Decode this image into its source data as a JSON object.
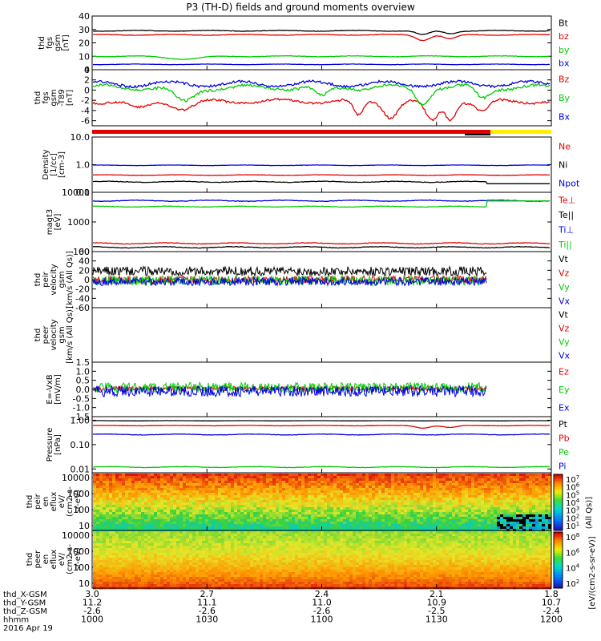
{
  "title": "P3 (TH-D) fields and ground moments overview",
  "colors": {
    "black": "#000000",
    "red": "#e00000",
    "green": "#00cc00",
    "blue": "#0000e0",
    "yellow": "#ffee00"
  },
  "xaxis": {
    "row_labels": [
      "thd_X-GSM",
      "thd_Y-GSM",
      "thd_Z-GSM",
      "hhmm"
    ],
    "date_label": "2016 Apr 19",
    "ticks": [
      {
        "time": "1000",
        "x": "3.0",
        "y": "11.2",
        "z": "-2.6"
      },
      {
        "time": "1030",
        "x": "2.7",
        "y": "11.1",
        "z": "-2.6"
      },
      {
        "time": "1100",
        "x": "2.4",
        "y": "11.0",
        "z": "-2.6"
      },
      {
        "time": "1130",
        "x": "2.1",
        "y": "10.9",
        "z": "-2.5"
      },
      {
        "time": "1200",
        "x": "1.8",
        "y": "10.7",
        "z": "-2.4"
      }
    ]
  },
  "colorbar": {
    "label": "[eV/(cm2-s-sr-eV)]",
    "label_upper": "(All Qs)]",
    "ticks_upper": [
      "10^7",
      "10^6",
      "10^5",
      "10^4",
      "10^3",
      "10^2",
      "10^1"
    ],
    "ticks_lower": [
      "10^8",
      "10^6",
      "10^4",
      "10^2"
    ]
  },
  "chart_data": [
    {
      "type": "line",
      "panel": "fgs_gsm",
      "ylabel": [
        "thd",
        "fgs",
        "gsm",
        "[nT]"
      ],
      "ylim": [
        0,
        40
      ],
      "yticks": [
        "0",
        "10",
        "20",
        "30",
        "40"
      ],
      "series": [
        {
          "name": "Bt",
          "color": "black",
          "base": 29,
          "noise": 0.3,
          "dips": [
            [
              0.72,
              3,
              0.02
            ],
            [
              0.78,
              2,
              0.02
            ]
          ]
        },
        {
          "name": "bz",
          "color": "red",
          "base": 26,
          "noise": 0.3,
          "dips": [
            [
              0.72,
              4,
              0.02
            ],
            [
              0.78,
              3,
              0.02
            ]
          ]
        },
        {
          "name": "by",
          "color": "green",
          "base": 10,
          "noise": 0.3,
          "dips": [
            [
              0.2,
              2,
              0.05
            ]
          ]
        },
        {
          "name": "bx",
          "color": "blue",
          "base": 4,
          "noise": 0.2,
          "dips": []
        }
      ]
    },
    {
      "type": "line",
      "panel": "fgs_gsm_detrended",
      "ylabel": [
        "thd",
        "fgs",
        "gsm",
        "-T89",
        "[nT]"
      ],
      "ylim": [
        -7,
        4
      ],
      "yticks": [
        "-6",
        "-4",
        "-2",
        "0",
        "2",
        "4"
      ],
      "series": [
        {
          "name": "Bz",
          "color": "red",
          "base": -2.2,
          "noise": 0.4,
          "dips": [
            [
              0.1,
              1.5,
              0.03
            ],
            [
              0.2,
              1.5,
              0.03
            ],
            [
              0.58,
              3,
              0.015
            ],
            [
              0.65,
              3,
              0.02
            ],
            [
              0.74,
              4,
              0.02
            ],
            [
              0.78,
              3.5,
              0.015
            ],
            [
              0.85,
              2,
              0.02
            ]
          ]
        },
        {
          "name": "By",
          "color": "green",
          "base": 0.5,
          "noise": 0.5,
          "dips": [
            [
              0.2,
              3,
              0.03
            ],
            [
              0.5,
              2,
              0.02
            ],
            [
              0.72,
              3,
              0.02
            ],
            [
              0.85,
              2,
              0.02
            ]
          ]
        },
        {
          "name": "Bx",
          "color": "blue",
          "base": 1.2,
          "noise": 0.5,
          "dips": []
        }
      ]
    },
    {
      "type": "line",
      "panel": "density",
      "ylabel": [
        "Density",
        "[1/cc]",
        "[cm-3]"
      ],
      "ylim": [
        0.1,
        10
      ],
      "log": true,
      "yticks": [
        "0.1",
        "1.0",
        "10.0"
      ],
      "series": [
        {
          "name": "Ne",
          "color": "red",
          "base": 0.42,
          "noise": 0.01,
          "dips": []
        },
        {
          "name": "Ni",
          "color": "black",
          "base": 0.24,
          "noise": 0.01,
          "dips": []
        },
        {
          "name": "Npot",
          "color": "blue",
          "base": 0.95,
          "noise": 0.02,
          "dips": []
        }
      ]
    },
    {
      "type": "line",
      "panel": "temperature",
      "ylabel": [
        "magt3",
        "[eV]"
      ],
      "ylim": [
        100,
        10000
      ],
      "log": true,
      "yticks": [
        "100",
        "1000",
        "10000"
      ],
      "series": [
        {
          "name": "Te⊥",
          "color": "red",
          "base": 190,
          "noise": 8,
          "dips": []
        },
        {
          "name": "Te||",
          "color": "black",
          "base": 140,
          "noise": 6,
          "dips": []
        },
        {
          "name": "Ti⊥",
          "color": "blue",
          "base": 5200,
          "noise": 200,
          "dips": []
        },
        {
          "name": "Ti||",
          "color": "green",
          "base": 3300,
          "noise": 100,
          "dips": []
        }
      ]
    },
    {
      "type": "line",
      "panel": "ion_velocity",
      "ylabel": [
        "thd",
        "peir",
        "velocity",
        "gsm",
        "[km/s (All Qs)]"
      ],
      "ylim": [
        -60,
        60
      ],
      "yticks": [
        "-60",
        "-40",
        "-20",
        "0",
        "20",
        "40",
        "60"
      ],
      "series": [
        {
          "name": "Vt",
          "color": "black",
          "base": 18,
          "noise": 10
        },
        {
          "name": "Vz",
          "color": "red",
          "base": 0,
          "noise": 8
        },
        {
          "name": "Vy",
          "color": "green",
          "base": -2,
          "noise": 10
        },
        {
          "name": "Vx",
          "color": "blue",
          "base": -4,
          "noise": 9
        }
      ]
    },
    {
      "type": "line",
      "panel": "electron_velocity",
      "ylabel": [
        "thd",
        "peer",
        "velocity",
        "gsm",
        "[km/s (All Qs)]"
      ],
      "series": [
        {
          "name": "Vt",
          "color": "black"
        },
        {
          "name": "Vz",
          "color": "red"
        },
        {
          "name": "Vy",
          "color": "green"
        },
        {
          "name": "Vx",
          "color": "blue"
        }
      ]
    },
    {
      "type": "line",
      "panel": "e_field",
      "ylabel": [
        "E=-VxB",
        "[mV/m]"
      ],
      "ylim": [
        -1.5,
        1.5
      ],
      "yticks": [
        "-1.5",
        "-1.0",
        "-0.5",
        "0.0",
        "0.5",
        "1.0",
        "1.5"
      ],
      "series": [
        {
          "name": "Ez",
          "color": "red",
          "base": 0.05,
          "noise": 0.12
        },
        {
          "name": "Ey",
          "color": "green",
          "base": 0.1,
          "noise": 0.28
        },
        {
          "name": "Ex",
          "color": "blue",
          "base": -0.1,
          "noise": 0.3
        }
      ]
    },
    {
      "type": "line",
      "panel": "pressure",
      "ylabel": [
        "Pressure",
        "[nPa]"
      ],
      "ylim": [
        0.007,
        1.4
      ],
      "log": true,
      "yticks": [
        "0.01",
        "0.10",
        "1.00"
      ],
      "series": [
        {
          "name": "Pt",
          "color": "black",
          "base": 0.95,
          "noise": 0.01,
          "dips": []
        },
        {
          "name": "Pb",
          "color": "red",
          "base": 0.6,
          "noise": 0.01,
          "dips": [
            [
              0.72,
              0.12,
              0.02
            ],
            [
              0.78,
              0.1,
              0.02
            ]
          ]
        },
        {
          "name": "Pe",
          "color": "green",
          "base": 0.012,
          "noise": 0.0005,
          "dips": []
        },
        {
          "name": "Pi",
          "color": "blue",
          "base": 0.26,
          "noise": 0.01,
          "dips": []
        }
      ]
    },
    {
      "type": "heatmap",
      "panel": "ion_eflux",
      "ylabel": [
        "thd",
        "peir",
        "en",
        "eflux",
        "eV/",
        "(cm2-s-",
        "sr-eV)"
      ],
      "ylim": [
        5,
        20000
      ],
      "log": true,
      "yticks": [
        "10",
        "100",
        "1000",
        "10000"
      ]
    },
    {
      "type": "heatmap",
      "panel": "electron_eflux",
      "ylabel": [
        "thd",
        "peer",
        "en",
        "eflux",
        "eV/",
        "(cm2-s-",
        "sr-eV)"
      ],
      "ylim": [
        5,
        20000
      ],
      "log": true,
      "yticks": [
        "10",
        "100",
        "1000",
        "10000"
      ]
    }
  ]
}
